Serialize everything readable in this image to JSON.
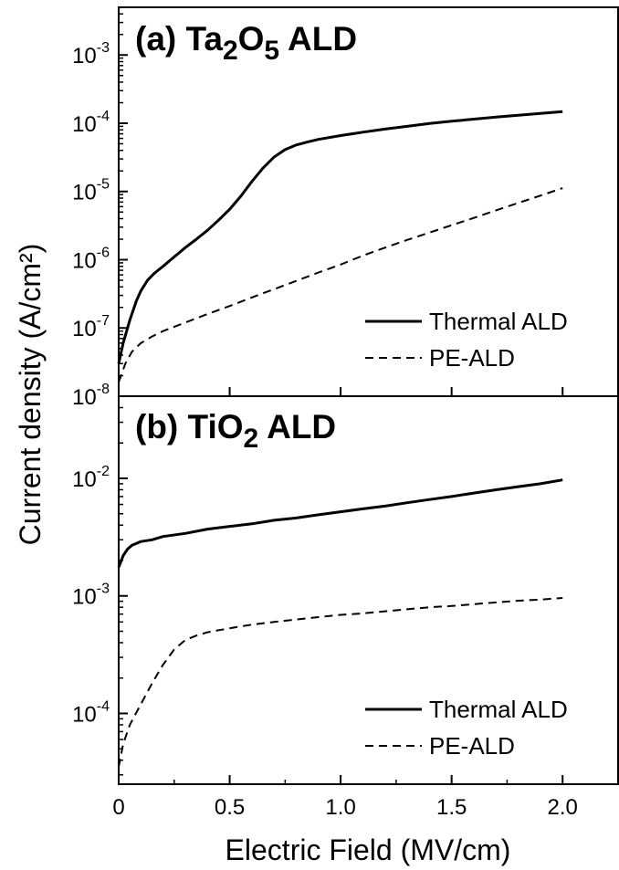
{
  "chart_data": {
    "type": "line",
    "ylabel": "Current density (A/cm²)",
    "xlabel": "Electric Field (MV/cm)",
    "xlim": [
      0,
      2.25
    ],
    "x_ticks": [
      0,
      0.5,
      1.0,
      1.5,
      2.0
    ],
    "x_tick_labels": [
      "0",
      "0.5",
      "1.0",
      "1.5",
      "2.0"
    ],
    "panels": [
      {
        "title_prefix": "(a) Ta",
        "title_sub1": "2",
        "title_mid": "O",
        "title_sub2": "5",
        "title_suffix": " ALD",
        "y_scale": "log",
        "ylim": [
          1e-08,
          0.005
        ],
        "y_ticks": [
          1e-08,
          1e-07,
          1e-06,
          1e-05,
          0.0001,
          0.001
        ],
        "y_tick_base": "10",
        "y_tick_exponents": [
          "-8",
          "-7",
          "-6",
          "-5",
          "-4",
          "-3"
        ],
        "legend_position": "bottom-right",
        "series": [
          {
            "name": "Thermal ALD",
            "style": "solid",
            "x": [
              0,
              0.02,
              0.05,
              0.08,
              0.1,
              0.13,
              0.16,
              0.2,
              0.25,
              0.3,
              0.35,
              0.4,
              0.45,
              0.5,
              0.55,
              0.6,
              0.65,
              0.7,
              0.75,
              0.8,
              0.85,
              0.9,
              1.0,
              1.1,
              1.2,
              1.3,
              1.4,
              1.5,
              1.6,
              1.7,
              1.8,
              1.9,
              2.0
            ],
            "y": [
              3e-08,
              6e-08,
              1.3e-07,
              2.5e-07,
              3.5e-07,
              5e-07,
              6.3e-07,
              8e-07,
              1.1e-06,
              1.5e-06,
              2e-06,
              2.7e-06,
              3.8e-06,
              5.5e-06,
              8.5e-06,
              1.4e-05,
              2.2e-05,
              3.2e-05,
              4.1e-05,
              4.8e-05,
              5.3e-05,
              5.8e-05,
              6.6e-05,
              7.4e-05,
              8.2e-05,
              9e-05,
              9.9e-05,
              0.000107,
              0.000115,
              0.000123,
              0.000131,
              0.000139,
              0.000148
            ]
          },
          {
            "name": "PE-ALD",
            "style": "dashed",
            "x": [
              0,
              0.03,
              0.06,
              0.1,
              0.15,
              0.2,
              0.3,
              0.4,
              0.5,
              0.6,
              0.7,
              0.8,
              0.9,
              1.0,
              1.1,
              1.2,
              1.3,
              1.4,
              1.5,
              1.6,
              1.7,
              1.8,
              1.9,
              2.0
            ],
            "y": [
              1.6e-08,
              3e-08,
              4.5e-08,
              6e-08,
              7.5e-08,
              9e-08,
              1.2e-07,
              1.6e-07,
              2.1e-07,
              2.8e-07,
              3.7e-07,
              4.9e-07,
              6.5e-07,
              8.5e-07,
              1.15e-06,
              1.5e-06,
              1.95e-06,
              2.5e-06,
              3.2e-06,
              4.1e-06,
              5.3e-06,
              6.8e-06,
              8.7e-06,
              1.12e-05
            ]
          }
        ]
      },
      {
        "title_prefix": "(b) TiO",
        "title_sub1": "2",
        "title_mid": "",
        "title_sub2": "",
        "title_suffix": " ALD",
        "y_scale": "log",
        "ylim": [
          2.5e-05,
          0.05
        ],
        "y_ticks": [
          0.0001,
          0.001,
          0.01
        ],
        "y_tick_base": "10",
        "y_tick_exponents": [
          "-4",
          "-3",
          "-2"
        ],
        "legend_position": "bottom-right",
        "series": [
          {
            "name": "Thermal ALD",
            "style": "solid",
            "x": [
              0,
              0.02,
              0.04,
              0.06,
              0.08,
              0.1,
              0.15,
              0.2,
              0.3,
              0.4,
              0.5,
              0.6,
              0.7,
              0.8,
              0.9,
              1.0,
              1.1,
              1.2,
              1.3,
              1.4,
              1.5,
              1.6,
              1.7,
              1.8,
              1.9,
              2.0
            ],
            "y": [
              0.00175,
              0.0022,
              0.0025,
              0.0027,
              0.0028,
              0.0029,
              0.003,
              0.0032,
              0.0034,
              0.0037,
              0.0039,
              0.0041,
              0.0044,
              0.0046,
              0.0049,
              0.0052,
              0.0055,
              0.0058,
              0.0062,
              0.0066,
              0.007,
              0.0075,
              0.008,
              0.0085,
              0.009,
              0.0097
            ]
          },
          {
            "name": "PE-ALD",
            "style": "dashed",
            "x": [
              0,
              0.02,
              0.05,
              0.1,
              0.15,
              0.2,
              0.25,
              0.3,
              0.35,
              0.4,
              0.5,
              0.6,
              0.7,
              0.8,
              0.9,
              1.0,
              1.1,
              1.2,
              1.3,
              1.4,
              1.5,
              1.6,
              1.7,
              1.8,
              1.9,
              2.0
            ],
            "y": [
              3.5e-05,
              5.5e-05,
              8e-05,
              0.00012,
              0.00018,
              0.00026,
              0.00035,
              0.00042,
              0.00046,
              0.00049,
              0.00053,
              0.00057,
              0.0006,
              0.00063,
              0.00066,
              0.00069,
              0.00071,
              0.00074,
              0.00077,
              0.0008,
              0.00082,
              0.00085,
              0.00088,
              0.00091,
              0.00093,
              0.00096
            ]
          }
        ]
      }
    ]
  }
}
